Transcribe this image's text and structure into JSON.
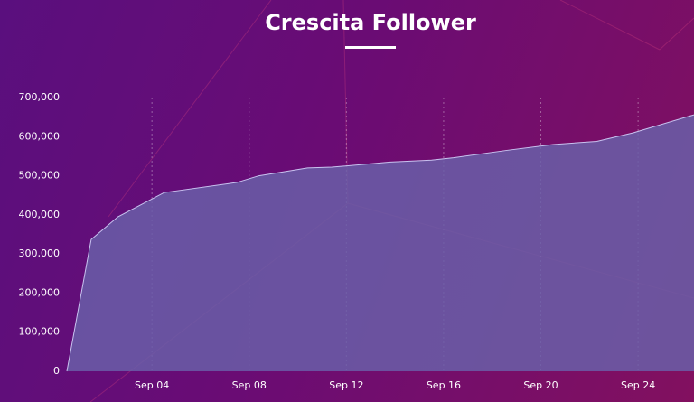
{
  "chart_data": {
    "type": "area",
    "title": "Crescita Follower",
    "x": [
      0.5,
      1.5,
      2.6,
      4.5,
      7.5,
      8.4,
      10.4,
      11.4,
      13.8,
      15.5,
      16.4,
      18.6,
      20.5,
      22.3,
      23.8,
      26.3
    ],
    "values": [
      0,
      337000,
      395000,
      457000,
      483000,
      500000,
      520000,
      522000,
      535000,
      540000,
      546000,
      565000,
      580000,
      588000,
      610000,
      656000
    ],
    "color": "#6a5fa8",
    "xlim": [
      0.5,
      26.3
    ],
    "xticks": [
      {
        "value": 4,
        "label": "Sep 04"
      },
      {
        "value": 8,
        "label": "Sep 08"
      },
      {
        "value": 12,
        "label": "Sep 12"
      },
      {
        "value": 16,
        "label": "Sep 16"
      },
      {
        "value": 20,
        "label": "Sep 20"
      },
      {
        "value": 24,
        "label": "Sep 24"
      }
    ],
    "ylim": [
      0,
      700000
    ],
    "yticks": [
      0,
      {
        "value": 100000,
        "label": "100,000"
      },
      {
        "value": 200000,
        "label": "200,000"
      },
      {
        "value": 300000,
        "label": "300,000"
      },
      {
        "value": 400000,
        "label": "400,000"
      },
      {
        "value": 500000,
        "label": "500,000"
      },
      {
        "value": 600000,
        "label": "600,000"
      },
      {
        "value": 700000,
        "label": "700,000"
      }
    ]
  }
}
